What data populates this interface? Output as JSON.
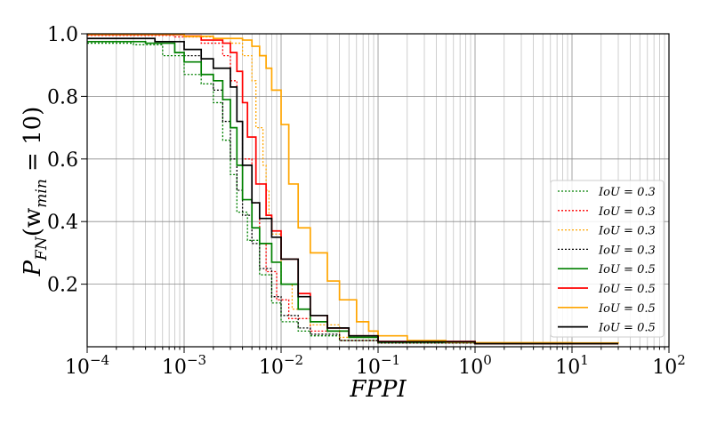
{
  "chart_data": {
    "type": "line",
    "title": "",
    "xlabel": "FPPI",
    "ylabel": {
      "base": "P",
      "base_sub": "FN",
      "arg": "(w",
      "arg_sub": "min",
      "tail": " = 10)"
    },
    "x_scale": "log",
    "xlim": [
      0.0001,
      100
    ],
    "ylim": [
      0.0,
      1.0
    ],
    "grid": true,
    "legend_placement": "lower-right",
    "x_ticks": [
      {
        "value": 0.0001,
        "base": "10",
        "exp": "−4"
      },
      {
        "value": 0.001,
        "base": "10",
        "exp": "−3"
      },
      {
        "value": 0.01,
        "base": "10",
        "exp": "−2"
      },
      {
        "value": 0.1,
        "base": "10",
        "exp": "−1"
      },
      {
        "value": 1,
        "base": "10",
        "exp": "0"
      },
      {
        "value": 10,
        "base": "10",
        "exp": "1"
      },
      {
        "value": 100,
        "base": "10",
        "exp": "2"
      }
    ],
    "y_ticks": [
      {
        "value": 0.2,
        "label": "0.2"
      },
      {
        "value": 0.4,
        "label": "0.4"
      },
      {
        "value": 0.6,
        "label": "0.6"
      },
      {
        "value": 0.8,
        "label": "0.8"
      },
      {
        "value": 1.0,
        "label": "1.0"
      }
    ],
    "series": [
      {
        "name": "IoU = 0.3",
        "color": "#008000",
        "dashed": true,
        "points": [
          [
            0.0001,
            0.97
          ],
          [
            0.0003,
            0.965
          ],
          [
            0.0006,
            0.93
          ],
          [
            0.001,
            0.87
          ],
          [
            0.0015,
            0.84
          ],
          [
            0.002,
            0.78
          ],
          [
            0.0025,
            0.66
          ],
          [
            0.003,
            0.55
          ],
          [
            0.0035,
            0.43
          ],
          [
            0.0045,
            0.34
          ],
          [
            0.006,
            0.23
          ],
          [
            0.008,
            0.14
          ],
          [
            0.01,
            0.08
          ],
          [
            0.015,
            0.05
          ],
          [
            0.02,
            0.035
          ],
          [
            0.04,
            0.02
          ],
          [
            0.1,
            0.012
          ],
          [
            1,
            0.01
          ],
          [
            30,
            0.01
          ]
        ]
      },
      {
        "name": "IoU = 0.3",
        "color": "#ff0000",
        "dashed": true,
        "points": [
          [
            0.0001,
            0.995
          ],
          [
            0.0008,
            0.99
          ],
          [
            0.0015,
            0.97
          ],
          [
            0.0025,
            0.93
          ],
          [
            0.003,
            0.85
          ],
          [
            0.0035,
            0.72
          ],
          [
            0.004,
            0.6
          ],
          [
            0.005,
            0.46
          ],
          [
            0.006,
            0.33
          ],
          [
            0.007,
            0.24
          ],
          [
            0.009,
            0.15
          ],
          [
            0.012,
            0.09
          ],
          [
            0.02,
            0.05
          ],
          [
            0.04,
            0.02
          ],
          [
            0.1,
            0.012
          ],
          [
            1,
            0.01
          ],
          [
            30,
            0.01
          ]
        ]
      },
      {
        "name": "IoU = 0.3",
        "color": "#ffa500",
        "dashed": true,
        "points": [
          [
            0.0001,
            0.998
          ],
          [
            0.001,
            0.99
          ],
          [
            0.002,
            0.985
          ],
          [
            0.003,
            0.97
          ],
          [
            0.004,
            0.93
          ],
          [
            0.005,
            0.85
          ],
          [
            0.0055,
            0.7
          ],
          [
            0.0065,
            0.58
          ],
          [
            0.007,
            0.5
          ],
          [
            0.0075,
            0.42
          ],
          [
            0.008,
            0.36
          ],
          [
            0.01,
            0.2
          ],
          [
            0.013,
            0.12
          ],
          [
            0.02,
            0.07
          ],
          [
            0.04,
            0.03
          ],
          [
            0.1,
            0.015
          ],
          [
            1,
            0.01
          ],
          [
            30,
            0.01
          ]
        ]
      },
      {
        "name": "IoU = 0.3",
        "color": "#000000",
        "dashed": true,
        "points": [
          [
            0.0001,
            0.985
          ],
          [
            0.0005,
            0.975
          ],
          [
            0.001,
            0.93
          ],
          [
            0.0015,
            0.87
          ],
          [
            0.002,
            0.82
          ],
          [
            0.0025,
            0.72
          ],
          [
            0.003,
            0.6
          ],
          [
            0.0035,
            0.5
          ],
          [
            0.004,
            0.42
          ],
          [
            0.005,
            0.33
          ],
          [
            0.006,
            0.25
          ],
          [
            0.008,
            0.16
          ],
          [
            0.01,
            0.1
          ],
          [
            0.015,
            0.06
          ],
          [
            0.02,
            0.04
          ],
          [
            0.04,
            0.02
          ],
          [
            0.1,
            0.012
          ],
          [
            1,
            0.01
          ],
          [
            30,
            0.01
          ]
        ]
      },
      {
        "name": "IoU = 0.5",
        "color": "#008000",
        "dashed": false,
        "points": [
          [
            0.0001,
            0.975
          ],
          [
            0.0004,
            0.97
          ],
          [
            0.0008,
            0.94
          ],
          [
            0.001,
            0.91
          ],
          [
            0.0015,
            0.87
          ],
          [
            0.002,
            0.85
          ],
          [
            0.0025,
            0.79
          ],
          [
            0.003,
            0.7
          ],
          [
            0.0035,
            0.58
          ],
          [
            0.004,
            0.47
          ],
          [
            0.005,
            0.38
          ],
          [
            0.006,
            0.33
          ],
          [
            0.008,
            0.27
          ],
          [
            0.01,
            0.2
          ],
          [
            0.015,
            0.12
          ],
          [
            0.02,
            0.08
          ],
          [
            0.03,
            0.05
          ],
          [
            0.05,
            0.03
          ],
          [
            0.1,
            0.015
          ],
          [
            1,
            0.01
          ],
          [
            30,
            0.01
          ]
        ]
      },
      {
        "name": "IoU = 0.5",
        "color": "#ff0000",
        "dashed": false,
        "points": [
          [
            0.0001,
            0.997
          ],
          [
            0.001,
            0.993
          ],
          [
            0.0015,
            0.98
          ],
          [
            0.0025,
            0.97
          ],
          [
            0.003,
            0.94
          ],
          [
            0.0035,
            0.88
          ],
          [
            0.004,
            0.78
          ],
          [
            0.0045,
            0.67
          ],
          [
            0.0055,
            0.52
          ],
          [
            0.007,
            0.42
          ],
          [
            0.008,
            0.37
          ],
          [
            0.01,
            0.28
          ],
          [
            0.015,
            0.17
          ],
          [
            0.02,
            0.1
          ],
          [
            0.03,
            0.06
          ],
          [
            0.05,
            0.035
          ],
          [
            0.1,
            0.017
          ],
          [
            1,
            0.01
          ],
          [
            30,
            0.01
          ]
        ]
      },
      {
        "name": "IoU = 0.5",
        "color": "#ffa500",
        "dashed": false,
        "points": [
          [
            0.0001,
            0.998
          ],
          [
            0.001,
            0.992
          ],
          [
            0.002,
            0.985
          ],
          [
            0.004,
            0.98
          ],
          [
            0.005,
            0.96
          ],
          [
            0.006,
            0.93
          ],
          [
            0.007,
            0.89
          ],
          [
            0.008,
            0.82
          ],
          [
            0.01,
            0.71
          ],
          [
            0.012,
            0.52
          ],
          [
            0.015,
            0.38
          ],
          [
            0.02,
            0.3
          ],
          [
            0.03,
            0.21
          ],
          [
            0.04,
            0.15
          ],
          [
            0.06,
            0.08
          ],
          [
            0.08,
            0.05
          ],
          [
            0.1,
            0.035
          ],
          [
            0.2,
            0.02
          ],
          [
            0.5,
            0.015
          ],
          [
            1,
            0.013
          ],
          [
            10,
            0.012
          ],
          [
            30,
            0.01
          ]
        ]
      },
      {
        "name": "IoU = 0.5",
        "color": "#000000",
        "dashed": false,
        "points": [
          [
            0.0001,
            0.985
          ],
          [
            0.0005,
            0.975
          ],
          [
            0.001,
            0.95
          ],
          [
            0.0015,
            0.92
          ],
          [
            0.002,
            0.89
          ],
          [
            0.003,
            0.83
          ],
          [
            0.0035,
            0.72
          ],
          [
            0.004,
            0.58
          ],
          [
            0.005,
            0.46
          ],
          [
            0.006,
            0.41
          ],
          [
            0.008,
            0.35
          ],
          [
            0.01,
            0.28
          ],
          [
            0.015,
            0.16
          ],
          [
            0.02,
            0.1
          ],
          [
            0.03,
            0.06
          ],
          [
            0.05,
            0.035
          ],
          [
            0.1,
            0.016
          ],
          [
            1,
            0.01
          ],
          [
            30,
            0.01
          ]
        ]
      }
    ]
  }
}
